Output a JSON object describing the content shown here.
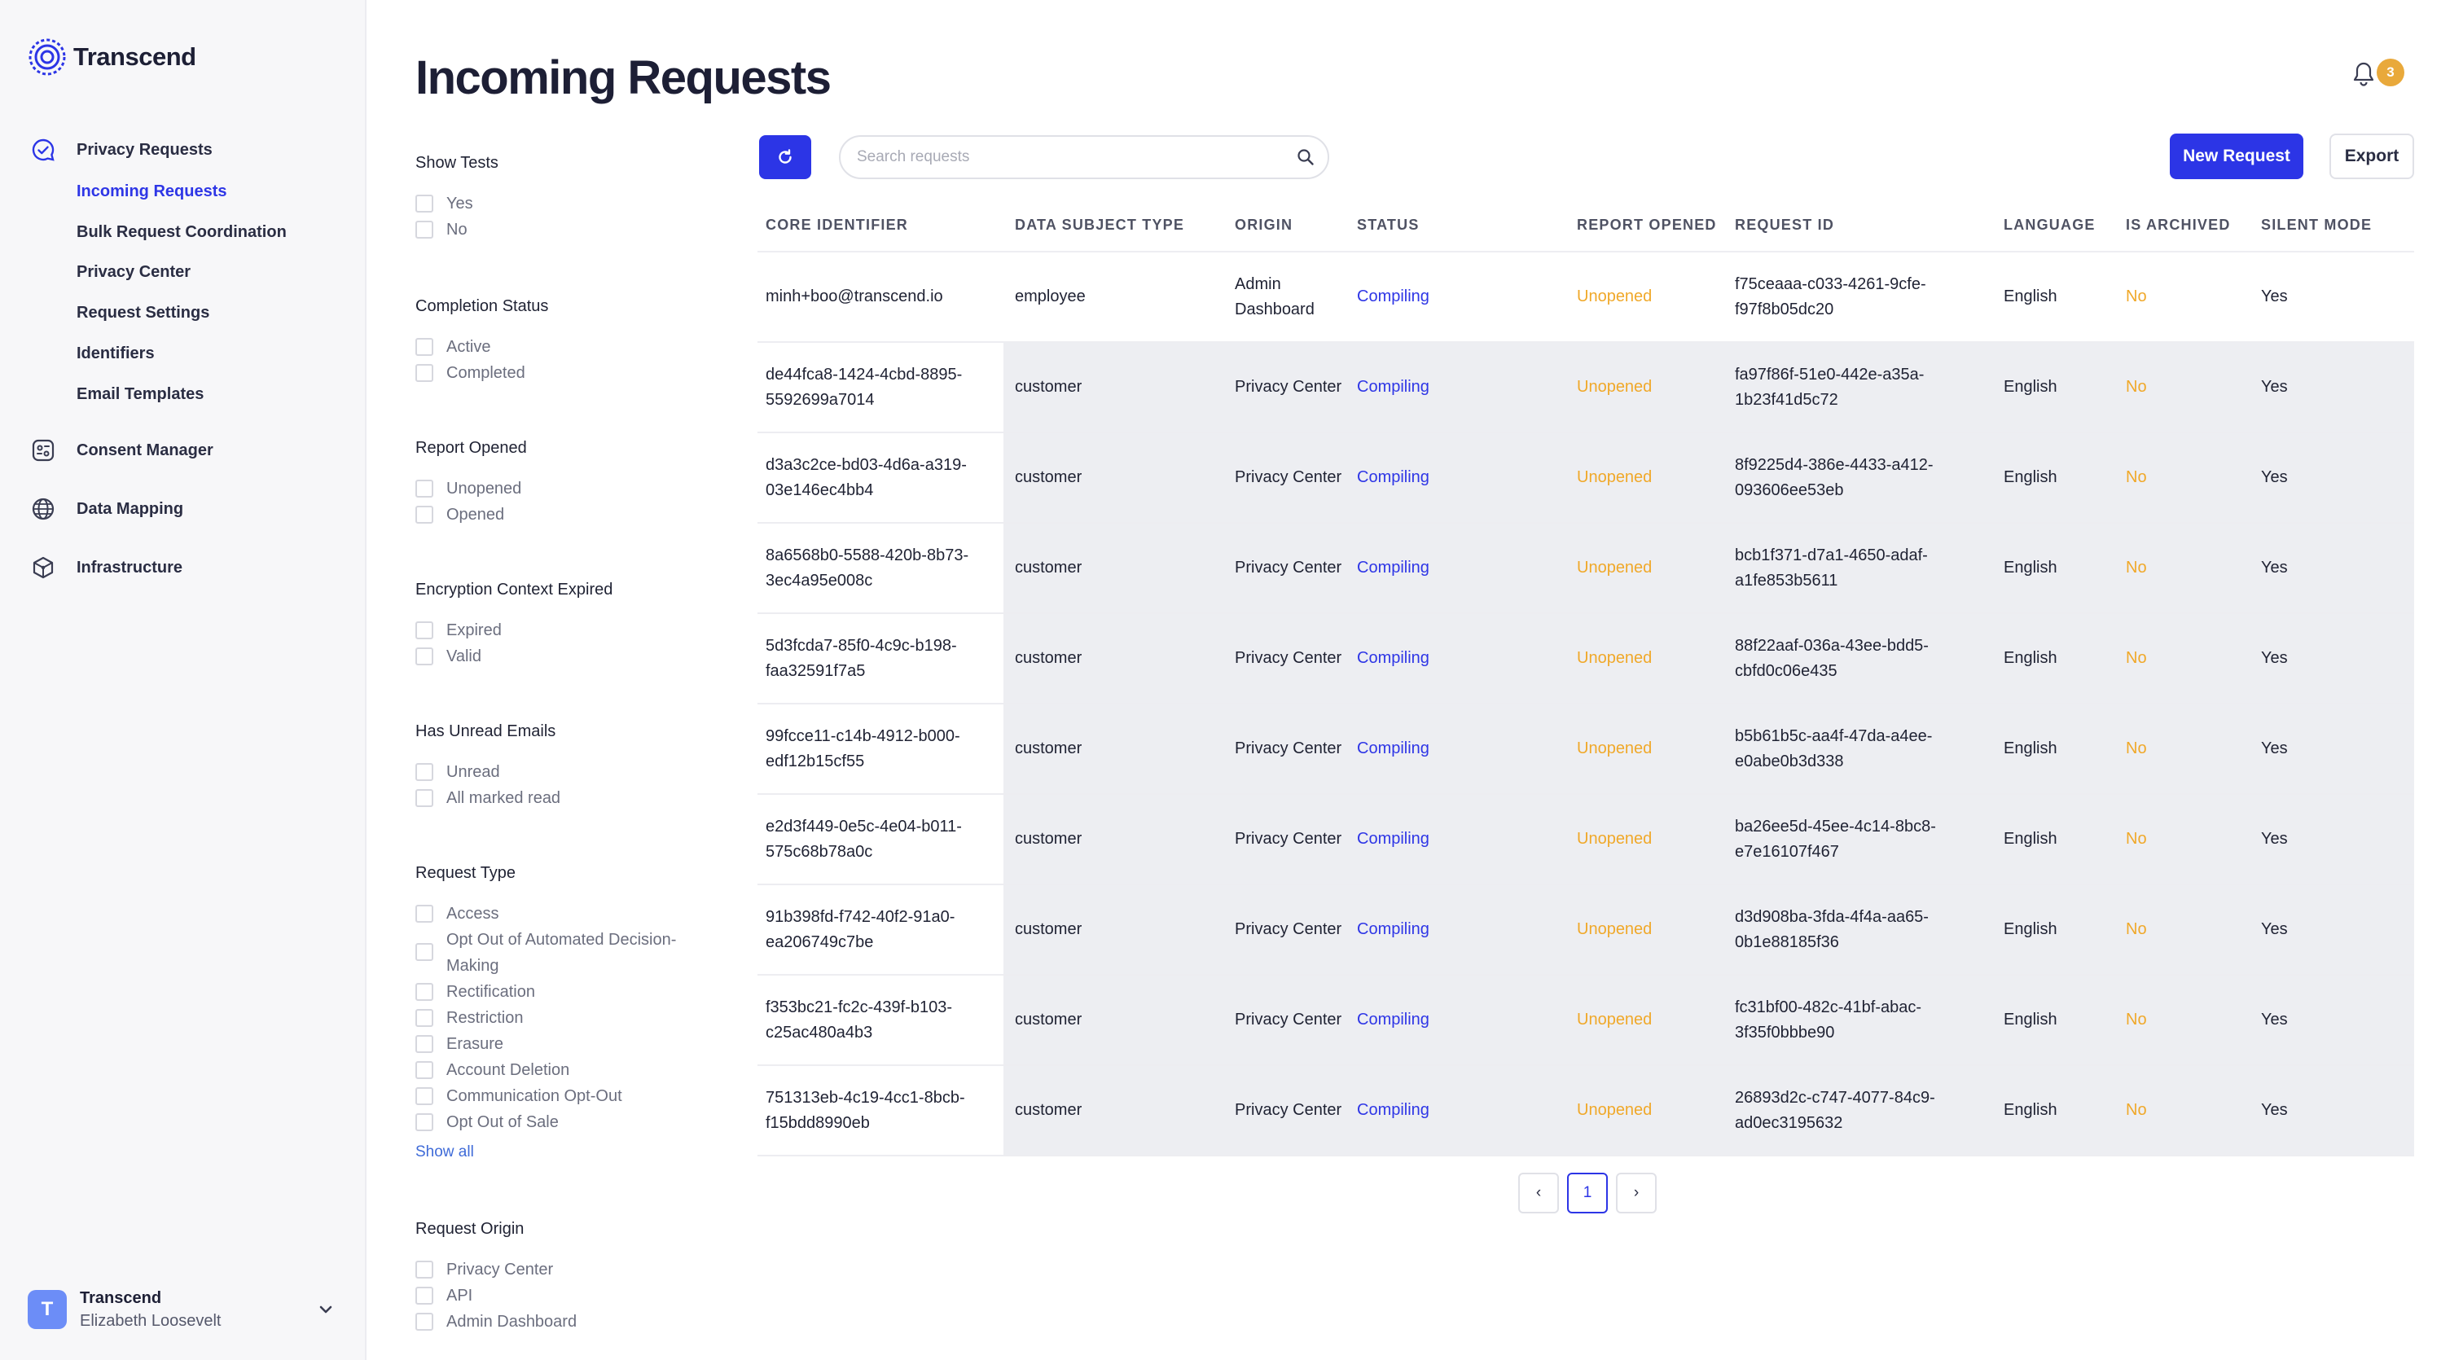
{
  "app": {
    "name": "Transcend"
  },
  "sidebar": {
    "sections": [
      {
        "label": "Privacy Requests",
        "icon": "chat-check-icon"
      },
      {
        "label": "Consent Manager",
        "icon": "consent-icon"
      },
      {
        "label": "Data Mapping",
        "icon": "globe-icon"
      },
      {
        "label": "Infrastructure",
        "icon": "cube-network-icon"
      }
    ],
    "privacy_items": [
      {
        "label": "Incoming Requests",
        "active": true
      },
      {
        "label": "Bulk Request Coordination"
      },
      {
        "label": "Privacy Center"
      },
      {
        "label": "Request Settings"
      },
      {
        "label": "Identifiers"
      },
      {
        "label": "Email Templates"
      }
    ],
    "user": {
      "initial": "T",
      "org": "Transcend",
      "name": "Elizabeth Loosevelt"
    }
  },
  "header": {
    "title": "Incoming Requests",
    "notifications": "3"
  },
  "filters": [
    {
      "title": "Show Tests",
      "options": [
        "Yes",
        "No"
      ]
    },
    {
      "title": "Completion Status",
      "options": [
        "Active",
        "Completed"
      ]
    },
    {
      "title": "Report Opened",
      "options": [
        "Unopened",
        "Opened"
      ]
    },
    {
      "title": "Encryption Context Expired",
      "options": [
        "Expired",
        "Valid"
      ]
    },
    {
      "title": "Has Unread Emails",
      "options": [
        "Unread",
        "All marked read"
      ]
    },
    {
      "title": "Request Type",
      "options": [
        "Access",
        "Opt Out of Automated Decision-Making",
        "Rectification",
        "Restriction",
        "Erasure",
        "Account Deletion",
        "Communication Opt-Out",
        "Opt Out of Sale"
      ],
      "show_all": "Show all"
    },
    {
      "title": "Request Origin",
      "options": [
        "Privacy Center",
        "API",
        "Admin Dashboard"
      ]
    }
  ],
  "toolbar": {
    "search_placeholder": "Search requests",
    "new_request": "New Request",
    "export": "Export"
  },
  "table": {
    "columns": [
      "CORE IDENTIFIER",
      "DATA SUBJECT TYPE",
      "ORIGIN",
      "STATUS",
      "REPORT OPENED",
      "REQUEST ID",
      "LANGUAGE",
      "IS ARCHIVED",
      "SILENT MODE"
    ],
    "rows": [
      {
        "core": [
          "minh+boo@transcend.io"
        ],
        "type": "employee",
        "origin": [
          "Admin",
          "Dashboard"
        ],
        "status": "Compiling",
        "report": "Unopened",
        "rid": [
          "f75ceaaa-c033-4261-9cfe-",
          "f97f8b05dc20"
        ],
        "lang": "English",
        "archived": "No",
        "silent": "Yes"
      },
      {
        "core": [
          "de44fca8-1424-4cbd-8895-",
          "5592699a7014"
        ],
        "type": "customer",
        "origin": [
          "Privacy Center"
        ],
        "status": "Compiling",
        "report": "Unopened",
        "rid": [
          "fa97f86f-51e0-442e-a35a-",
          "1b23f41d5c72"
        ],
        "lang": "English",
        "archived": "No",
        "silent": "Yes"
      },
      {
        "core": [
          "d3a3c2ce-bd03-4d6a-a319-",
          "03e146ec4bb4"
        ],
        "type": "customer",
        "origin": [
          "Privacy Center"
        ],
        "status": "Compiling",
        "report": "Unopened",
        "rid": [
          "8f9225d4-386e-4433-a412-",
          "093606ee53eb"
        ],
        "lang": "English",
        "archived": "No",
        "silent": "Yes"
      },
      {
        "core": [
          "8a6568b0-5588-420b-8b73-",
          "3ec4a95e008c"
        ],
        "type": "customer",
        "origin": [
          "Privacy Center"
        ],
        "status": "Compiling",
        "report": "Unopened",
        "rid": [
          "bcb1f371-d7a1-4650-adaf-",
          "a1fe853b5611"
        ],
        "lang": "English",
        "archived": "No",
        "silent": "Yes"
      },
      {
        "core": [
          "5d3fcda7-85f0-4c9c-b198-",
          "faa32591f7a5"
        ],
        "type": "customer",
        "origin": [
          "Privacy Center"
        ],
        "status": "Compiling",
        "report": "Unopened",
        "rid": [
          "88f22aaf-036a-43ee-bdd5-",
          "cbfd0c06e435"
        ],
        "lang": "English",
        "archived": "No",
        "silent": "Yes"
      },
      {
        "core": [
          "99fcce11-c14b-4912-b000-",
          "edf12b15cf55"
        ],
        "type": "customer",
        "origin": [
          "Privacy Center"
        ],
        "status": "Compiling",
        "report": "Unopened",
        "rid": [
          "b5b61b5c-aa4f-47da-a4ee-",
          "e0abe0b3d338"
        ],
        "lang": "English",
        "archived": "No",
        "silent": "Yes"
      },
      {
        "core": [
          "e2d3f449-0e5c-4e04-b011-",
          "575c68b78a0c"
        ],
        "type": "customer",
        "origin": [
          "Privacy Center"
        ],
        "status": "Compiling",
        "report": "Unopened",
        "rid": [
          "ba26ee5d-45ee-4c14-8bc8-",
          "e7e16107f467"
        ],
        "lang": "English",
        "archived": "No",
        "silent": "Yes"
      },
      {
        "core": [
          "91b398fd-f742-40f2-91a0-",
          "ea206749c7be"
        ],
        "type": "customer",
        "origin": [
          "Privacy Center"
        ],
        "status": "Compiling",
        "report": "Unopened",
        "rid": [
          "d3d908ba-3fda-4f4a-aa65-",
          "0b1e88185f36"
        ],
        "lang": "English",
        "archived": "No",
        "silent": "Yes"
      },
      {
        "core": [
          "f353bc21-fc2c-439f-b103-",
          "c25ac480a4b3"
        ],
        "type": "customer",
        "origin": [
          "Privacy Center"
        ],
        "status": "Compiling",
        "report": "Unopened",
        "rid": [
          "fc31bf00-482c-41bf-abac-",
          "3f35f0bbbe90"
        ],
        "lang": "English",
        "archived": "No",
        "silent": "Yes"
      },
      {
        "core": [
          "751313eb-4c19-4cc1-8bcb-",
          "f15bdd8990eb"
        ],
        "type": "customer",
        "origin": [
          "Privacy Center"
        ],
        "status": "Compiling",
        "report": "Unopened",
        "rid": [
          "26893d2c-c747-4077-84c9-",
          "ad0ec3195632"
        ],
        "lang": "English",
        "archived": "No",
        "silent": "Yes"
      }
    ]
  },
  "pagination": {
    "prev": "‹",
    "current": "1",
    "next": "›"
  }
}
